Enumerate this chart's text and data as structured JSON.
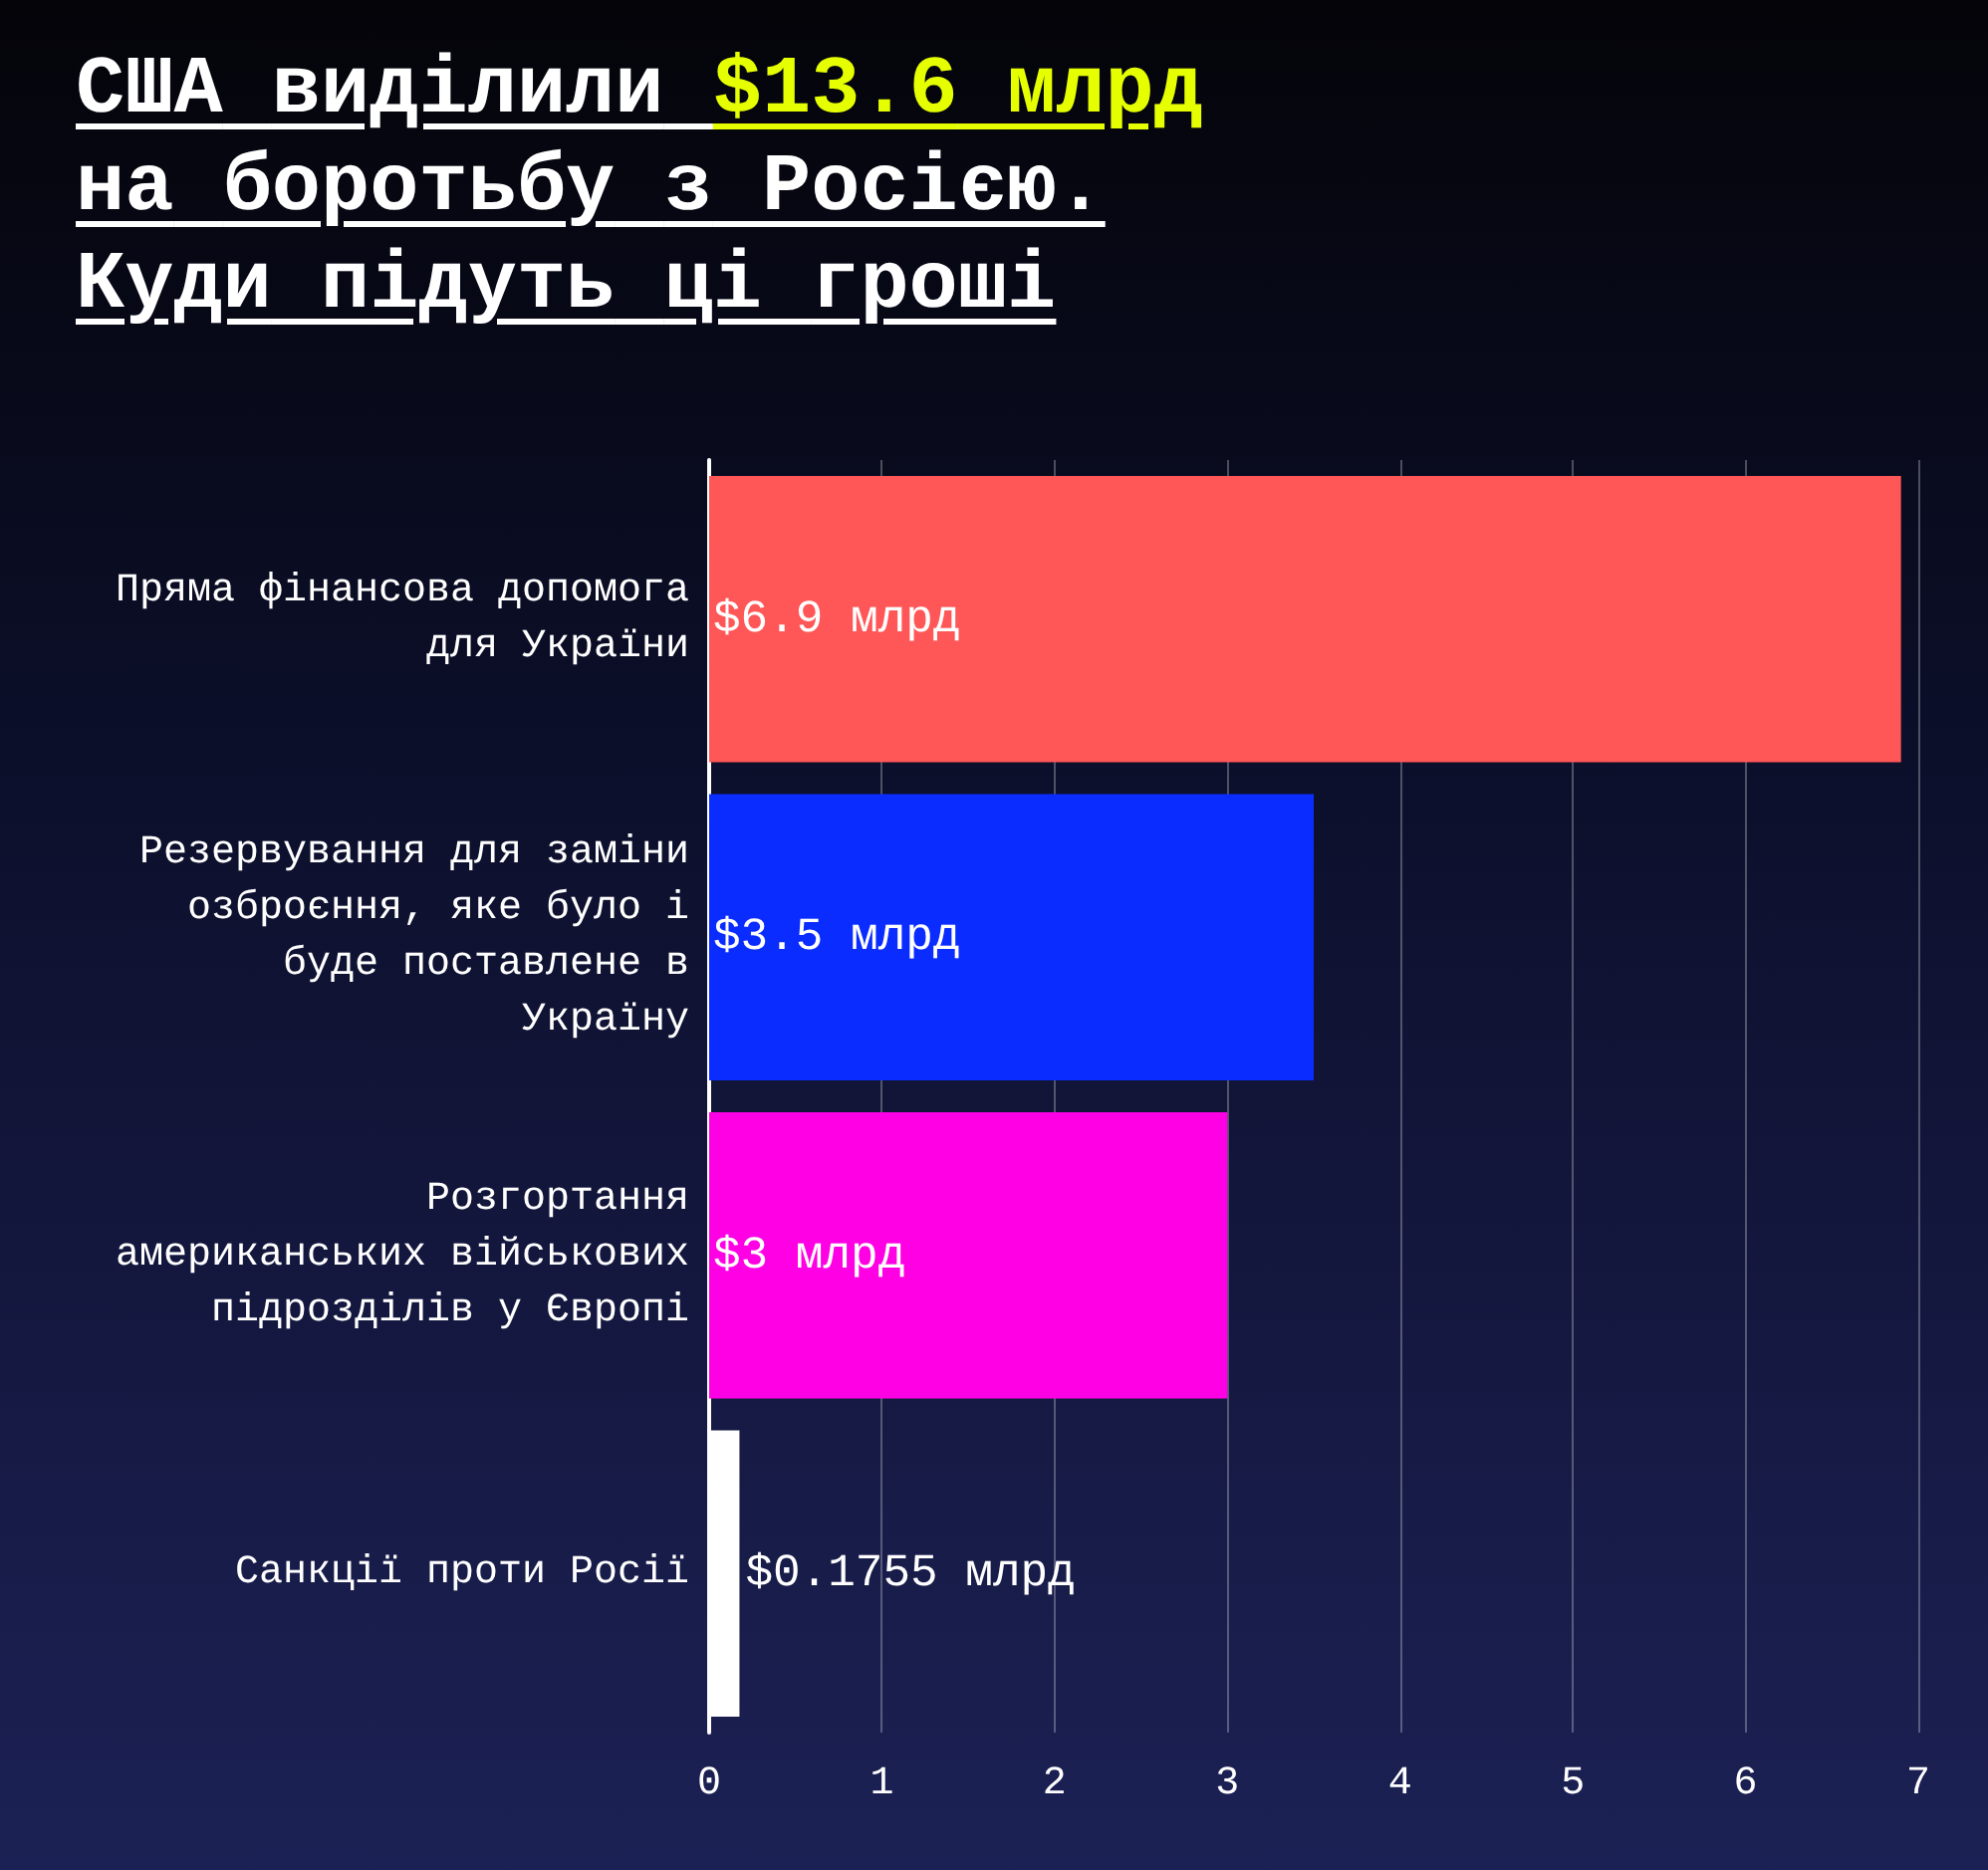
{
  "chart_data": {
    "type": "bar",
    "orientation": "horizontal",
    "title": "США виділили $13.6 млрд на боротьбу з Росією. Куди підуть ці гроші",
    "categories": [
      "Пряма фінансова допомога для України",
      "Резервування для заміни озброєння, яке було і буде поставлене в Україну",
      "Розгортання американських військових підрозділів у Європі",
      "Санкції проти Росії"
    ],
    "values": [
      6.9,
      3.5,
      3,
      0.1755
    ],
    "colors": [
      "#ff5757",
      "#0a2cff",
      "#ff00e5",
      "#ffffff"
    ],
    "value_labels": [
      "$6.9 млрд",
      "$3.5 млрд",
      "$3 млрд",
      "$0.1755 млрд"
    ],
    "xlim": [
      0,
      7
    ],
    "xticks": [
      0,
      1,
      2,
      3,
      4,
      5,
      6,
      7
    ],
    "grid": "x"
  }
}
